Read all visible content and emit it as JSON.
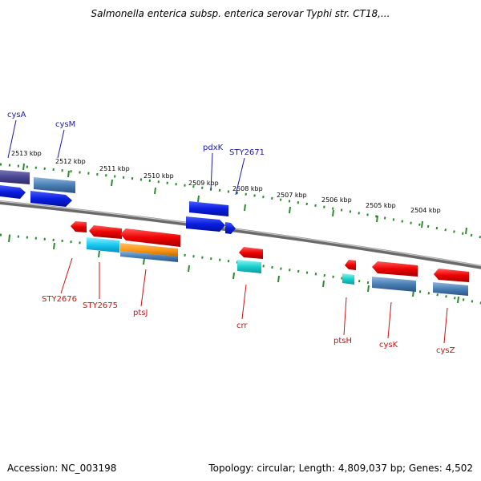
{
  "title": "Salmonella enterica subsp. enterica serovar Typhi str. CT18,...",
  "footer": {
    "accession": "Accession: NC_003198",
    "topology": "Topology: circular; Length: 4,809,037 bp; Genes: 4,502"
  },
  "colors": {
    "backbone": "#8a8a8a",
    "tick": "#2a8a2a",
    "forward_label": "#1a1aa8",
    "reverse_label": "#cc1111"
  },
  "scale_labels": [
    "2513 kbp",
    "2512 kbp",
    "2511 kbp",
    "2510 kbp",
    "2509 kbp",
    "2508 kbp",
    "2507 kbp",
    "2506 kbp",
    "2505 kbp",
    "2504 kbp"
  ],
  "forward_gene_labels": [
    "cysA",
    "cysM",
    "pdxK",
    "STY2671"
  ],
  "reverse_gene_labels": [
    "STY2676",
    "STY2675",
    "ptsJ",
    "crr",
    "ptsH",
    "cysK",
    "cysZ"
  ]
}
